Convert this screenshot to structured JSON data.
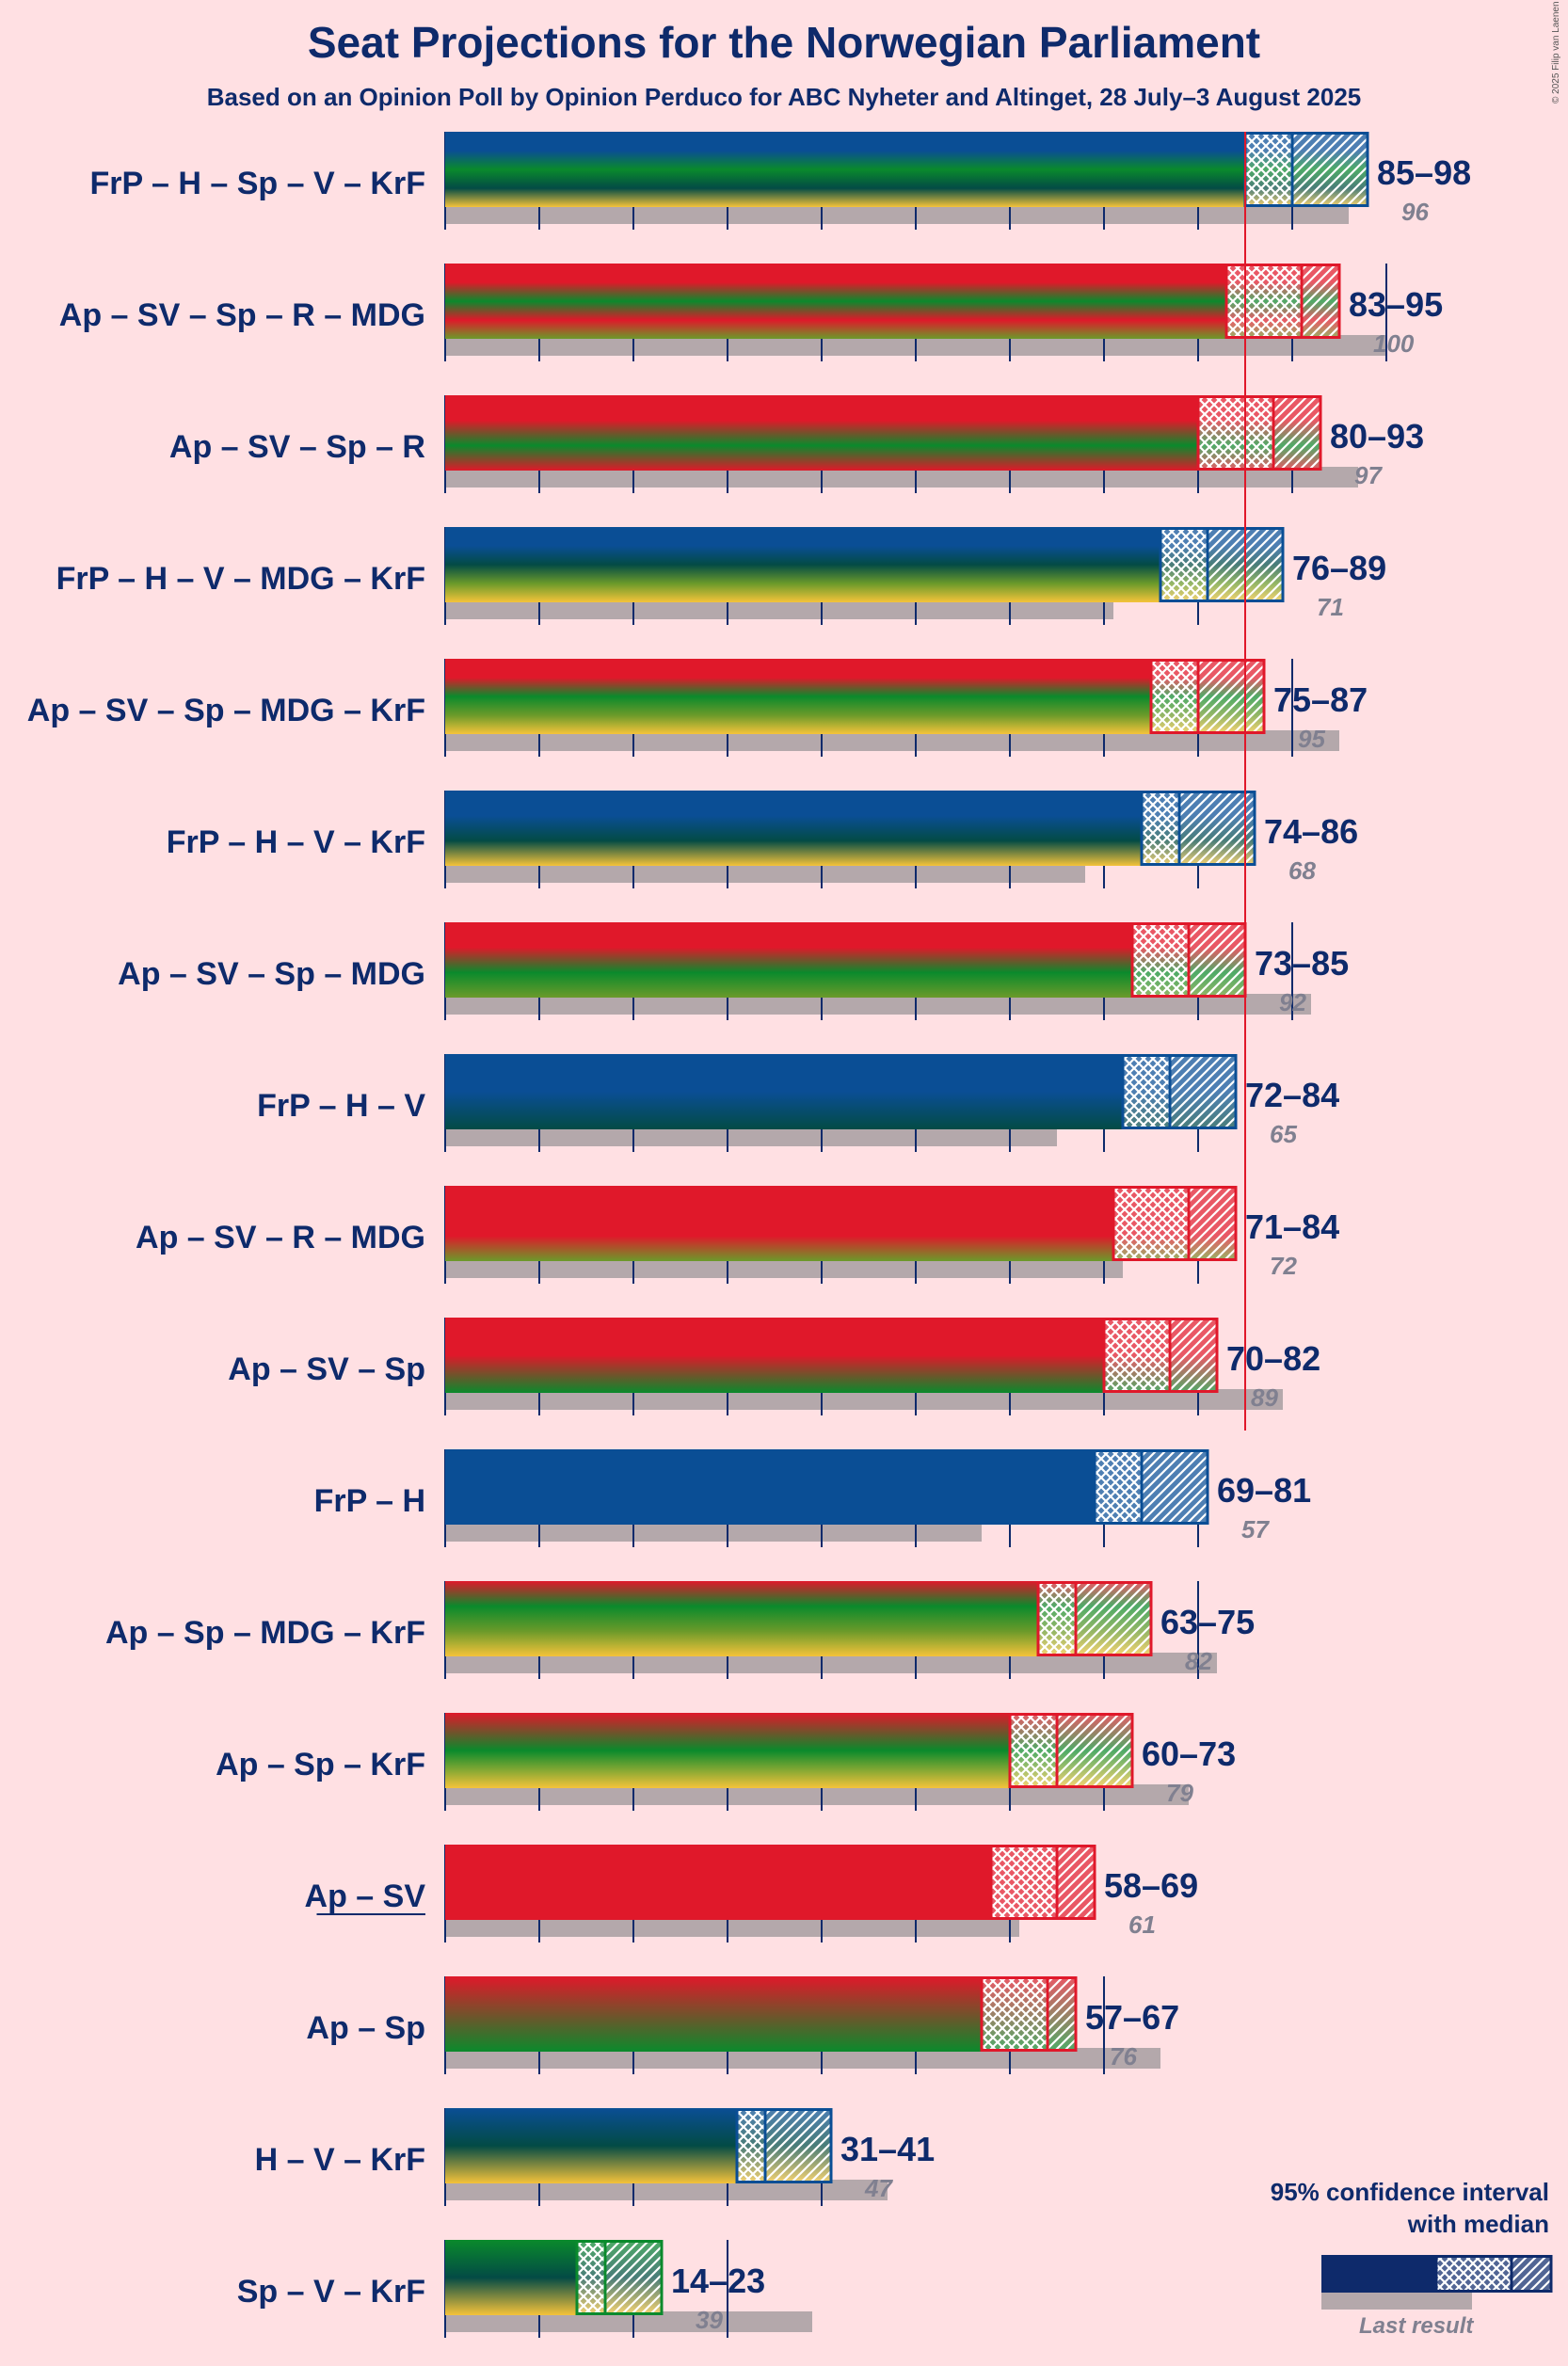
{
  "title": "Seat Projections for the Norwegian Parliament",
  "subtitle": "Based on an Opinion Poll by Opinion Perduco for ABC Nyheter and Altinget, 28 July–3 August 2025",
  "copyright": "© 2025 Filip van Laenen",
  "legend": {
    "title_line1": "95% confidence interval",
    "title_line2": "with median",
    "last_result": "Last result"
  },
  "colors": {
    "Ap": "#E0182A",
    "SV": "#E0182A",
    "R": "#E0182A",
    "Sp": "#0A8A2C",
    "MDG": "#6B9A2A",
    "FrP": "#0A4E95",
    "H": "#0A4E95",
    "V": "#034B45",
    "KrF": "#F5C33A",
    "majority": "#E0182A",
    "grid": "#0E2A6B",
    "last": "#B4A8AB",
    "text": "#0E2A6B",
    "lastText": "#808090"
  },
  "chart_data": {
    "type": "bar",
    "title": "Seat Projections for the Norwegian Parliament",
    "x_range": [
      0,
      100
    ],
    "majority": 85,
    "gridlines_every": 10,
    "coalitions": [
      {
        "label": "FrP – H – Sp – V – KrF",
        "parties": [
          "FrP",
          "H",
          "Sp",
          "V",
          "KrF"
        ],
        "low": 85,
        "median": 90,
        "high": 98,
        "range_text": "85–98",
        "last": 96,
        "last_text": "96",
        "underline": false
      },
      {
        "label": "Ap – SV – Sp – R – MDG",
        "parties": [
          "Ap",
          "SV",
          "Sp",
          "R",
          "MDG"
        ],
        "low": 83,
        "median": 91,
        "high": 95,
        "range_text": "83–95",
        "last": 100,
        "last_text": "100",
        "underline": false
      },
      {
        "label": "Ap – SV – Sp – R",
        "parties": [
          "Ap",
          "SV",
          "Sp",
          "R"
        ],
        "low": 80,
        "median": 88,
        "high": 93,
        "range_text": "80–93",
        "last": 97,
        "last_text": "97",
        "underline": false
      },
      {
        "label": "FrP – H – V – MDG – KrF",
        "parties": [
          "FrP",
          "H",
          "V",
          "MDG",
          "KrF"
        ],
        "low": 76,
        "median": 81,
        "high": 89,
        "range_text": "76–89",
        "last": 71,
        "last_text": "71",
        "underline": false
      },
      {
        "label": "Ap – SV – Sp – MDG – KrF",
        "parties": [
          "Ap",
          "SV",
          "Sp",
          "MDG",
          "KrF"
        ],
        "low": 75,
        "median": 80,
        "high": 87,
        "range_text": "75–87",
        "last": 95,
        "last_text": "95",
        "underline": false
      },
      {
        "label": "FrP – H – V – KrF",
        "parties": [
          "FrP",
          "H",
          "V",
          "KrF"
        ],
        "low": 74,
        "median": 78,
        "high": 86,
        "range_text": "74–86",
        "last": 68,
        "last_text": "68",
        "underline": false
      },
      {
        "label": "Ap – SV – Sp – MDG",
        "parties": [
          "Ap",
          "SV",
          "Sp",
          "MDG"
        ],
        "low": 73,
        "median": 79,
        "high": 85,
        "range_text": "73–85",
        "last": 92,
        "last_text": "92",
        "underline": false
      },
      {
        "label": "FrP – H – V",
        "parties": [
          "FrP",
          "H",
          "V"
        ],
        "low": 72,
        "median": 77,
        "high": 84,
        "range_text": "72–84",
        "last": 65,
        "last_text": "65",
        "underline": false
      },
      {
        "label": "Ap – SV – R – MDG",
        "parties": [
          "Ap",
          "SV",
          "R",
          "MDG"
        ],
        "low": 71,
        "median": 79,
        "high": 84,
        "range_text": "71–84",
        "last": 72,
        "last_text": "72",
        "underline": false
      },
      {
        "label": "Ap – SV – Sp",
        "parties": [
          "Ap",
          "SV",
          "Sp"
        ],
        "low": 70,
        "median": 77,
        "high": 82,
        "range_text": "70–82",
        "last": 89,
        "last_text": "89",
        "underline": false
      },
      {
        "label": "FrP – H",
        "parties": [
          "FrP",
          "H"
        ],
        "low": 69,
        "median": 74,
        "high": 81,
        "range_text": "69–81",
        "last": 57,
        "last_text": "57",
        "underline": false
      },
      {
        "label": "Ap – Sp – MDG – KrF",
        "parties": [
          "Ap",
          "Sp",
          "MDG",
          "KrF"
        ],
        "low": 63,
        "median": 67,
        "high": 75,
        "range_text": "63–75",
        "last": 82,
        "last_text": "82",
        "underline": false
      },
      {
        "label": "Ap – Sp – KrF",
        "parties": [
          "Ap",
          "Sp",
          "KrF"
        ],
        "low": 60,
        "median": 65,
        "high": 73,
        "range_text": "60–73",
        "last": 79,
        "last_text": "79",
        "underline": false
      },
      {
        "label": "Ap – SV",
        "parties": [
          "Ap",
          "SV"
        ],
        "low": 58,
        "median": 65,
        "high": 69,
        "range_text": "58–69",
        "last": 61,
        "last_text": "61",
        "underline": true
      },
      {
        "label": "Ap – Sp",
        "parties": [
          "Ap",
          "Sp"
        ],
        "low": 57,
        "median": 64,
        "high": 67,
        "range_text": "57–67",
        "last": 76,
        "last_text": "76",
        "underline": false
      },
      {
        "label": "H – V – KrF",
        "parties": [
          "H",
          "V",
          "KrF"
        ],
        "low": 31,
        "median": 34,
        "high": 41,
        "range_text": "31–41",
        "last": 47,
        "last_text": "47",
        "underline": false
      },
      {
        "label": "Sp – V – KrF",
        "parties": [
          "Sp",
          "V",
          "KrF"
        ],
        "low": 14,
        "median": 17,
        "high": 23,
        "range_text": "14–23",
        "last": 39,
        "last_text": "39",
        "underline": false
      }
    ]
  }
}
